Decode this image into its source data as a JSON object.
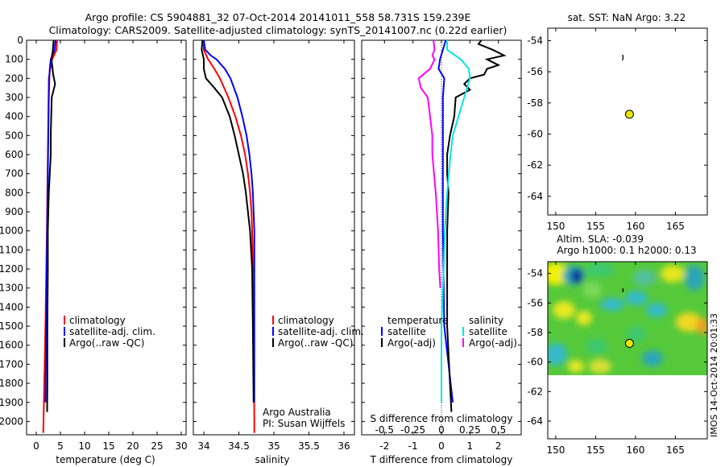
{
  "header": {
    "title_line1": "Argo profile: CS 5904881_32 07-Oct-2014 20141011_558 58.731S 159.239E",
    "title_line2": "Climatology: CARS2009. Satellite-adjusted climatology: synTS_20141007.nc (0.22d earlier)"
  },
  "colors": {
    "climatology": "#ff0000",
    "satellite": "#0000ff",
    "argo": "#000000",
    "salinity_satellite": "#00e5e5",
    "salinity_argo": "#ff00ff",
    "float_marker": "#e6e600"
  },
  "depth_ticks": [
    "0",
    "100",
    "200",
    "300",
    "400",
    "500",
    "600",
    "700",
    "800",
    "900",
    "1000",
    "1100",
    "1200",
    "1300",
    "1400",
    "1500",
    "1600",
    "1700",
    "1800",
    "1900",
    "2000"
  ],
  "chart_data": [
    {
      "type": "line",
      "xlabel": "temperature (deg C)",
      "xlim": [
        -2,
        31
      ],
      "xticks": [
        "0",
        "5",
        "10",
        "15",
        "20",
        "25",
        "30"
      ],
      "ylim": [
        0,
        2070
      ],
      "legend": [
        "climatology",
        "satellite-adj. clim.",
        "Argo(..raw -QC)"
      ],
      "series": [
        {
          "name": "climatology",
          "depth": [
            0,
            50,
            100,
            150,
            200,
            300,
            500,
            800,
            1000,
            1500,
            2000,
            2060
          ],
          "values": [
            4.3,
            4.2,
            3.3,
            2.9,
            2.6,
            2.55,
            2.45,
            2.3,
            2.2,
            1.9,
            1.5,
            1.45
          ]
        },
        {
          "name": "satellite-adj. clim.",
          "depth": [
            0,
            50,
            100,
            150,
            200,
            300,
            500,
            800,
            1000,
            1500,
            1900
          ],
          "values": [
            4.0,
            3.8,
            3.0,
            2.8,
            2.7,
            2.6,
            2.5,
            2.35,
            2.25,
            2.05,
            1.9
          ]
        },
        {
          "name": "Argo(..raw -QC)",
          "depth": [
            0,
            30,
            60,
            100,
            130,
            180,
            230,
            300,
            400,
            500,
            600,
            800,
            1000,
            1200,
            1500,
            1800,
            1950
          ],
          "values": [
            3.6,
            3.5,
            3.4,
            3.1,
            3.3,
            3.5,
            3.9,
            3.2,
            3.1,
            3.0,
            3.0,
            2.6,
            2.4,
            2.4,
            2.3,
            2.3,
            2.25
          ]
        }
      ]
    },
    {
      "type": "line",
      "xlabel": "salinity",
      "xlim": [
        33.85,
        36.15
      ],
      "xticks": [
        "34",
        "34.5",
        "35",
        "35.5",
        "36"
      ],
      "ylim": [
        0,
        2070
      ],
      "legend": [
        "climatology",
        "satellite-adj. clim.",
        "Argo(..raw -QC)"
      ],
      "annotations": [
        "Argo Australia",
        "PI: Susan Wijffels"
      ],
      "series": [
        {
          "name": "climatology",
          "depth": [
            0,
            50,
            100,
            150,
            200,
            300,
            400,
            500,
            600,
            700,
            800,
            900,
            1000,
            1200,
            1500,
            2000,
            2060
          ],
          "values": [
            34.0,
            34.0,
            34.06,
            34.15,
            34.23,
            34.35,
            34.45,
            34.53,
            34.59,
            34.63,
            34.66,
            34.68,
            34.69,
            34.7,
            34.71,
            34.72,
            34.72
          ]
        },
        {
          "name": "satellite-adj. clim.",
          "depth": [
            0,
            50,
            80,
            100,
            150,
            200,
            300,
            400,
            500,
            600,
            700,
            800,
            900,
            1000,
            1200,
            1500,
            1900
          ],
          "values": [
            34.0,
            34.02,
            34.1,
            34.18,
            34.3,
            34.38,
            34.48,
            34.55,
            34.61,
            34.65,
            34.68,
            34.7,
            34.71,
            34.72,
            34.72,
            34.72,
            34.72
          ]
        },
        {
          "name": "Argo(..raw -QC)",
          "depth": [
            0,
            50,
            100,
            150,
            200,
            250,
            300,
            400,
            500,
            600,
            700,
            800,
            900,
            1000,
            1200,
            1500,
            1900
          ],
          "values": [
            33.98,
            33.97,
            34.0,
            34.0,
            34.03,
            34.15,
            34.26,
            34.37,
            34.44,
            34.5,
            34.56,
            34.6,
            34.63,
            34.66,
            34.69,
            34.7,
            34.71
          ]
        }
      ]
    },
    {
      "type": "line",
      "xlabel": "T difference from climatology",
      "xlim": [
        -2.8,
        2.8
      ],
      "xticks": [
        "-2",
        "-1",
        "0",
        "1",
        "2"
      ],
      "top_axis_label": "S difference from climatology",
      "top_xticks": [
        "-0.5",
        "-0.25",
        "0",
        "0.25",
        "0.5"
      ],
      "ylim": [
        0,
        2070
      ],
      "legend_titles": [
        "temperature",
        "salinity"
      ],
      "legend": [
        "satellite",
        "Argo(-adj)",
        "satellite",
        "Argo(-adj)"
      ],
      "series": [
        {
          "name": "temperature satellite",
          "depth": [
            0,
            50,
            100,
            150,
            200,
            300,
            500,
            800,
            1000,
            1500,
            1900
          ],
          "values": [
            0.15,
            0.05,
            -0.05,
            -0.1,
            0.1,
            0.05,
            0.05,
            0.05,
            0.05,
            0.1,
            0.4
          ]
        },
        {
          "name": "temperature Argo(-adj)",
          "depth": [
            0,
            20,
            50,
            80,
            100,
            130,
            150,
            180,
            200,
            230,
            260,
            300,
            400,
            500,
            600,
            700,
            800,
            1000,
            1200,
            1500,
            1800,
            1950
          ],
          "values": [
            1.4,
            1.3,
            1.8,
            2.2,
            1.6,
            2.0,
            1.6,
            1.5,
            1.0,
            0.8,
            1.0,
            0.5,
            0.45,
            0.3,
            0.2,
            0.2,
            0.25,
            0.2,
            0.2,
            0.2,
            0.3,
            0.35
          ]
        },
        {
          "name": "salinity satellite",
          "depth": [
            0,
            50,
            100,
            150,
            200,
            300,
            400,
            500,
            600,
            800,
            1000,
            1200,
            1500,
            1900
          ],
          "values": [
            0.05,
            0.05,
            0.17,
            0.24,
            0.25,
            0.2,
            0.15,
            0.1,
            0.08,
            0.05,
            0.03,
            0.02,
            0.0,
            0.0
          ]
        },
        {
          "name": "salinity Argo(-adj)",
          "depth": [
            0,
            50,
            80,
            100,
            150,
            200,
            250,
            300,
            400,
            500,
            600,
            800,
            1000,
            1200,
            1300
          ],
          "values": [
            -0.07,
            -0.06,
            -0.08,
            -0.06,
            -0.1,
            -0.2,
            -0.18,
            -0.12,
            -0.1,
            -0.08,
            -0.08,
            -0.05,
            -0.03,
            -0.02,
            -0.01
          ]
        }
      ]
    },
    {
      "type": "scatter",
      "title": "sat. SST: NaN Argo: 3.22",
      "xlim": [
        149,
        169
      ],
      "ylim": [
        -65.2,
        -53.2
      ],
      "xticks": [
        "150",
        "155",
        "160",
        "165"
      ],
      "yticks": [
        "-54",
        "-56",
        "-58",
        "-60",
        "-62",
        "-64"
      ],
      "points": [
        {
          "x": 159.239,
          "y": -58.731
        }
      ]
    },
    {
      "type": "heatmap",
      "title": "Altim. SLA: -0.039",
      "subtitle": "Argo h1000: 0.1 h2000: 0.13",
      "xlim": [
        149,
        169
      ],
      "ylim": [
        -65.2,
        -53.2
      ],
      "data_ylim": [
        -60,
        -53.2
      ],
      "xticks": [
        "150",
        "155",
        "160",
        "165"
      ],
      "yticks": [
        "-54",
        "-56",
        "-58",
        "-60",
        "-62",
        "-64"
      ],
      "points": [
        {
          "x": 159.239,
          "y": -58.731
        }
      ]
    }
  ],
  "footer_stamp": "IMOS 14-Oct-2014 20:01:33"
}
